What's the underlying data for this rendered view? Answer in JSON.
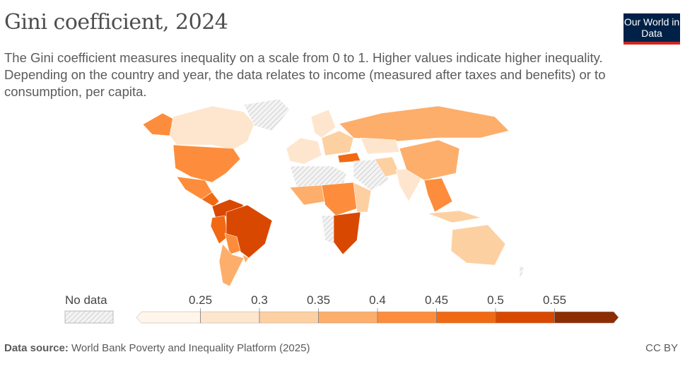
{
  "header": {
    "title": "Gini coefficient, 2024",
    "subtitle": "The Gini coefficient measures inequality on a scale from 0 to 1. Higher values indicate higher inequality. Depending on the country and year, the data relates to income (measured after taxes and benefits) or to consumption, per capita.",
    "logo": "Our World in Data"
  },
  "legend": {
    "no_data_label": "No data",
    "ticks": [
      "0.25",
      "0.3",
      "0.35",
      "0.4",
      "0.45",
      "0.5",
      "0.55"
    ],
    "colors": [
      "#fff5eb",
      "#fee6ce",
      "#fdd0a2",
      "#fdae6b",
      "#fd8d3c",
      "#f16913",
      "#d94801",
      "#8c2d04"
    ]
  },
  "footer": {
    "source_label": "Data source:",
    "source": "World Bank Poverty and Inequality Platform (2025)",
    "license": "CC BY"
  }
}
